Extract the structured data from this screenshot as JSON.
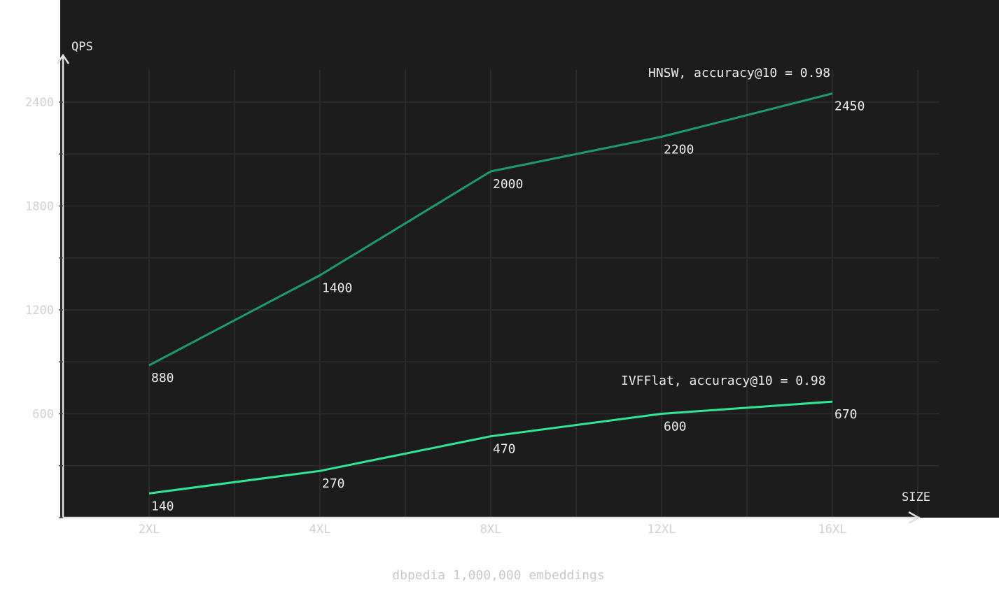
{
  "chart_data": {
    "type": "line",
    "title": "",
    "caption": "dbpedia 1,000,000 embeddings",
    "xlabel": "SIZE",
    "ylabel": "QPS",
    "categories": [
      "2XL",
      "4XL",
      "8XL",
      "12XL",
      "16XL"
    ],
    "y_ticks": [
      "600",
      "1200",
      "1800",
      "2400"
    ],
    "ylim": [
      0,
      2400
    ],
    "grid": true,
    "series": [
      {
        "name": "HNSW, accuracy@10 = 0.98",
        "values": [
          880,
          1400,
          2000,
          2200,
          2450
        ],
        "labels": [
          "880",
          "1400",
          "2000",
          "2200",
          "2450"
        ],
        "color": "#1c9c6a"
      },
      {
        "name": "IVFFlat, accuracy@10 = 0.98",
        "values": [
          140,
          270,
          470,
          600,
          670
        ],
        "labels": [
          "140",
          "270",
          "470",
          "600",
          "670"
        ],
        "color": "#2ee896"
      }
    ],
    "colors": {
      "plot_background": "#1c1c1c",
      "grid": "#2e2e2e",
      "axis": "#e0e0e0"
    }
  }
}
